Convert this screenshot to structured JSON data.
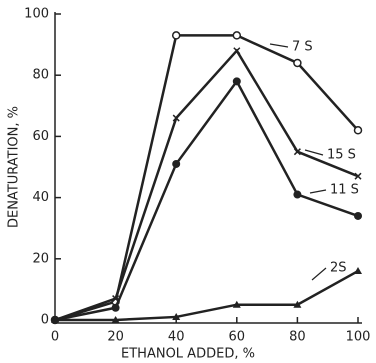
{
  "chart_data": {
    "type": "line",
    "xlabel": "ETHANOL ADDED, %",
    "ylabel": "DENATURATION, %",
    "x": [
      0,
      20,
      40,
      60,
      80,
      100
    ],
    "xlim": [
      0,
      100
    ],
    "xticks": [
      0,
      20,
      40,
      60,
      80,
      100
    ],
    "ylim": [
      0,
      100
    ],
    "yticks": [
      0,
      20,
      40,
      60,
      80,
      100
    ],
    "series": [
      {
        "name": "7 S",
        "color": "#222",
        "marker": "circle",
        "values": [
          0,
          6,
          93,
          93,
          84,
          62
        ]
      },
      {
        "name": "15 S",
        "color": "#222",
        "marker": "x",
        "values": [
          0,
          7,
          66,
          88,
          55,
          47
        ]
      },
      {
        "name": "11 S",
        "color": "#222",
        "marker": "dot",
        "values": [
          0,
          4,
          51,
          78,
          41,
          34
        ]
      },
      {
        "name": "2S",
        "color": "#222",
        "marker": "triangle",
        "values": [
          0,
          0,
          1,
          5,
          5,
          16
        ]
      }
    ]
  }
}
